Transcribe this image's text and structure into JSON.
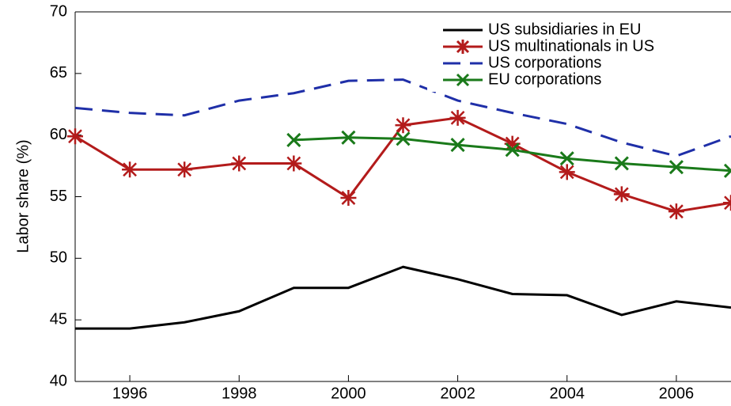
{
  "chart_data": {
    "type": "line",
    "y_label": "Labor share (%)",
    "x": [
      1995,
      1996,
      1997,
      1998,
      1999,
      2000,
      2001,
      2002,
      2003,
      2004,
      2005,
      2006,
      2007
    ],
    "xlim": [
      1995,
      2007
    ],
    "xticks": [
      1996,
      1998,
      2000,
      2002,
      2004,
      2006
    ],
    "ylim": [
      40,
      70
    ],
    "yticks": [
      40,
      45,
      50,
      55,
      60,
      65,
      70
    ],
    "series": [
      {
        "name": "US subsidiaries in EU",
        "color": "#000000",
        "dash": false,
        "marker": "none",
        "values": [
          44.3,
          44.3,
          44.8,
          45.7,
          47.6,
          47.6,
          49.3,
          48.3,
          47.1,
          47.0,
          45.4,
          46.5,
          46.0
        ]
      },
      {
        "name": "US multinationals in US",
        "color": "#b31b1b",
        "dash": false,
        "marker": "asterisk",
        "values": [
          59.9,
          57.2,
          57.2,
          57.7,
          57.7,
          54.9,
          60.8,
          61.4,
          59.3,
          57.0,
          55.2,
          53.8,
          54.5
        ]
      },
      {
        "name": "US corporations",
        "color": "#1f2fa8",
        "dash": true,
        "marker": "none",
        "values": [
          62.2,
          61.8,
          61.6,
          62.8,
          63.4,
          64.4,
          64.5,
          62.8,
          61.8,
          60.9,
          59.4,
          58.3,
          59.9
        ]
      },
      {
        "name": "EU corporations",
        "color": "#1a7a1a",
        "dash": false,
        "marker": "x",
        "values": [
          null,
          null,
          null,
          null,
          59.6,
          59.8,
          59.7,
          59.2,
          58.8,
          58.1,
          57.7,
          57.4,
          57.1
        ]
      }
    ]
  }
}
